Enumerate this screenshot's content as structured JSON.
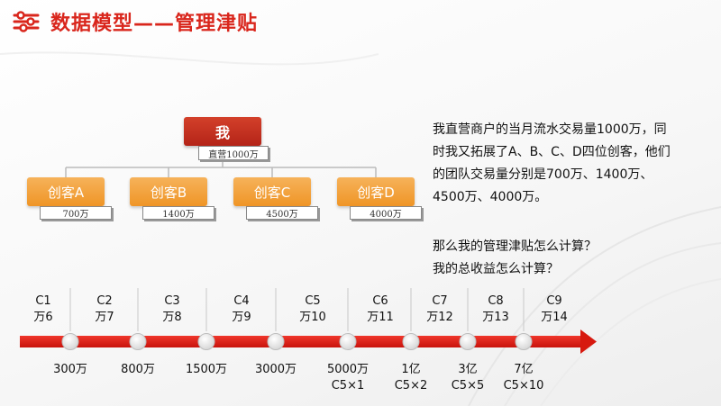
{
  "title": "数据模型——管理津贴",
  "colors": {
    "accent_red": "#d9261c",
    "creator_orange": "#f2a13c",
    "arrow_red": "#e01b12"
  },
  "tree": {
    "root": {
      "label": "我",
      "sub": "直营1000万"
    },
    "children": [
      {
        "label": "创客A",
        "sub": "700万"
      },
      {
        "label": "创客B",
        "sub": "1400万"
      },
      {
        "label": "创客C",
        "sub": "4500万"
      },
      {
        "label": "创客D",
        "sub": "4000万"
      }
    ]
  },
  "description": {
    "lines": [
      "我直营商户的当月流水交易量1000万，同",
      "时我又拓展了A、B、C、D四位创客，他们",
      "的团队交易量分别是700万、1400万、",
      "4500万、4000万。"
    ],
    "questions": [
      "那么我的管理津贴怎么计算？",
      "我的总收益怎么计算？"
    ]
  },
  "timeline": {
    "levels": [
      {
        "code": "C1",
        "reward": "万6"
      },
      {
        "code": "C2",
        "reward": "万7"
      },
      {
        "code": "C3",
        "reward": "万8"
      },
      {
        "code": "C4",
        "reward": "万9"
      },
      {
        "code": "C5",
        "reward": "万10"
      },
      {
        "code": "C6",
        "reward": "万11"
      },
      {
        "code": "C7",
        "reward": "万12"
      },
      {
        "code": "C8",
        "reward": "万13"
      },
      {
        "code": "C9",
        "reward": "万14"
      }
    ],
    "thresholds": [
      {
        "amount": "300万",
        "note": ""
      },
      {
        "amount": "800万",
        "note": ""
      },
      {
        "amount": "1500万",
        "note": ""
      },
      {
        "amount": "3000万",
        "note": ""
      },
      {
        "amount": "5000万",
        "note": "C5×1"
      },
      {
        "amount": "1亿",
        "note": "C5×2"
      },
      {
        "amount": "3亿",
        "note": "C5×5"
      },
      {
        "amount": "7亿",
        "note": "C5×10"
      }
    ]
  }
}
